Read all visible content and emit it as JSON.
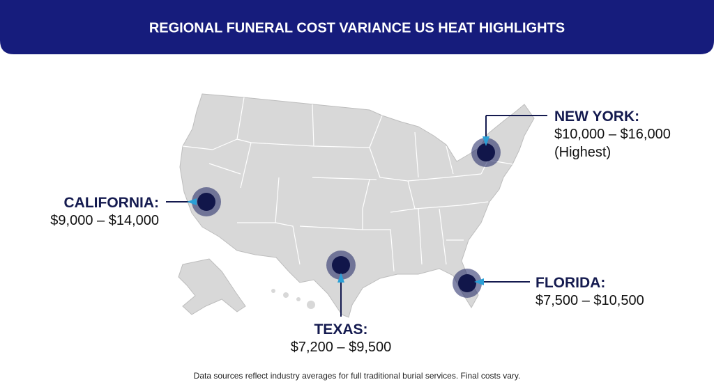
{
  "header": {
    "title": "REGIONAL FUNERAL COST VARIANCE US HEAT HIGHLIGHTS"
  },
  "regions": [
    {
      "name": "CALIFORNIA:",
      "range": "$9,000 – $14,000"
    },
    {
      "name": "NEW YORK:",
      "range": "$10,000 – $16,000",
      "note": "(Highest)"
    },
    {
      "name": "TEXAS:",
      "range": "$7,200 – $9,500"
    },
    {
      "name": "FLORIDA:",
      "range": "$7,500 – $10,500"
    }
  ],
  "footer": "Data sources reflect industry averages for full traditional burial services. Final costs vary."
}
